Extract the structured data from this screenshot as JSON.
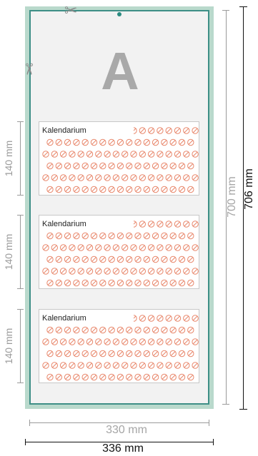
{
  "main_label": "A",
  "calendarium_blocks": [
    {
      "label": "Kalendarium",
      "height_label": "140 mm"
    },
    {
      "label": "Kalendarium",
      "height_label": "140 mm"
    },
    {
      "label": "Kalendarium",
      "height_label": "140 mm"
    }
  ],
  "dimensions": {
    "inner_width": "330 mm",
    "outer_width": "336 mm",
    "inner_height": "700 mm",
    "outer_height": "706 mm"
  },
  "icons": [
    "scissors-icon",
    "hanger-dot-icon",
    "no-sign-icon"
  ],
  "colors": {
    "bleed": "#b9d9cc",
    "trim_line": "#3e8f86",
    "pattern": "#e8866a",
    "dimension": "#9a9a9a",
    "dimension_dark": "#111111"
  }
}
